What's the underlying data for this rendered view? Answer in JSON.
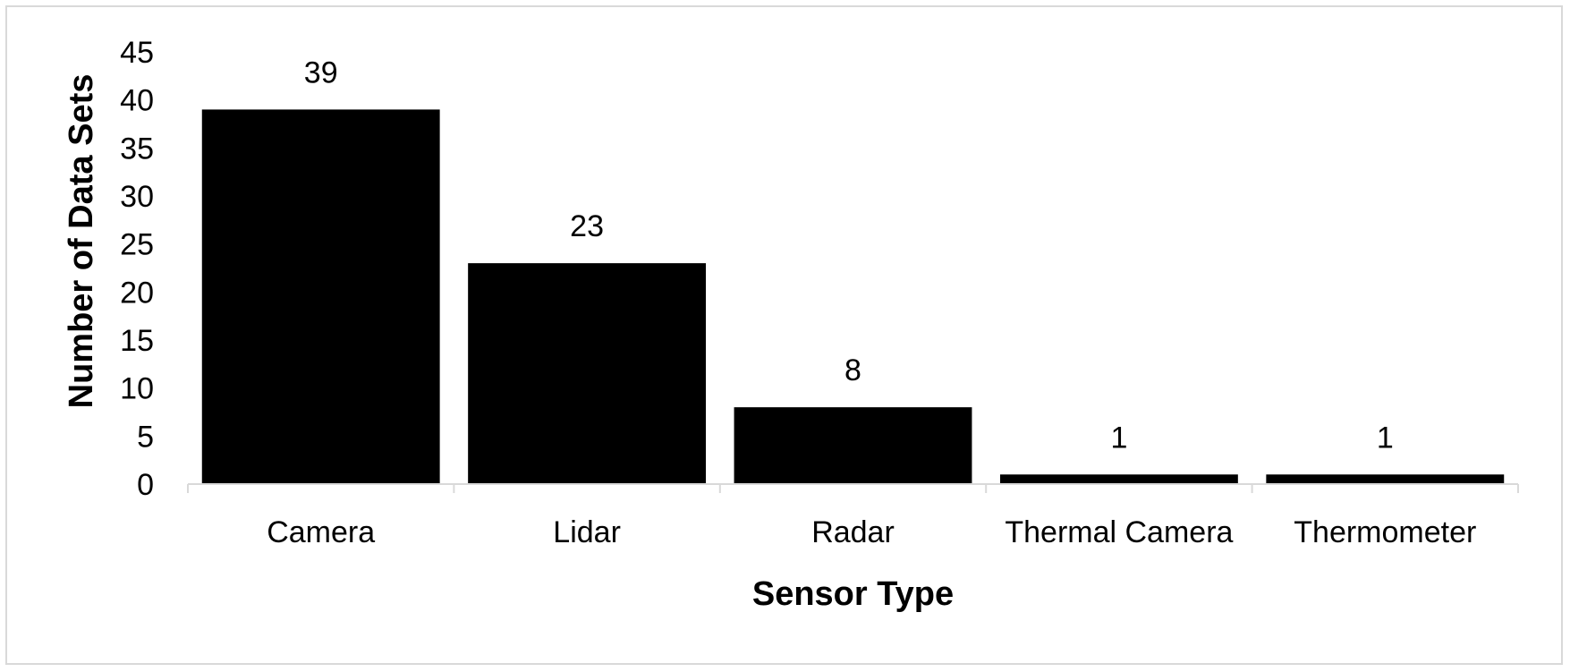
{
  "chart_data": {
    "type": "bar",
    "title": "",
    "xlabel": "Sensor Type",
    "ylabel": "Number of Data Sets",
    "categories": [
      "Camera",
      "Lidar",
      "Radar",
      "Thermal Camera",
      "Thermometer"
    ],
    "values": [
      39,
      23,
      8,
      1,
      1
    ],
    "data_labels": [
      "39",
      "23",
      "8",
      "1",
      "1"
    ],
    "ylim": [
      0,
      45
    ],
    "yticks": [
      0,
      5,
      10,
      15,
      20,
      25,
      30,
      35,
      40,
      45
    ],
    "grid": false,
    "legend": "none",
    "bar_color": "#000000",
    "axis_color": "#d9d9d9"
  }
}
